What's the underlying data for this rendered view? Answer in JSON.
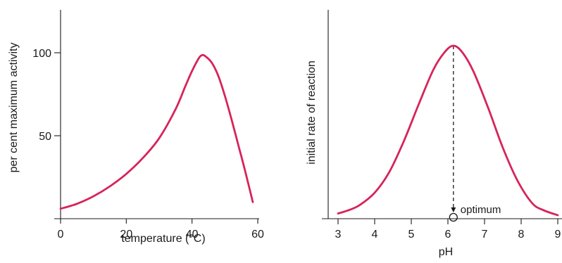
{
  "chart_data": [
    {
      "type": "line",
      "xlabel": "temperature (°C)",
      "ylabel": "per cent maximum activity",
      "xlim": [
        0,
        60
      ],
      "ylim": [
        0,
        125
      ],
      "x_ticks": [
        0,
        20,
        40,
        60
      ],
      "y_ticks": [
        50,
        100
      ],
      "grid": false,
      "series": [
        {
          "color": "#d6245a",
          "x": [
            0,
            5,
            10,
            15,
            20,
            25,
            30,
            35,
            38,
            40,
            42,
            43,
            44,
            46,
            48,
            50,
            52,
            54,
            56,
            58.5
          ],
          "y": [
            6,
            9,
            13.5,
            19.5,
            27,
            36.5,
            48.5,
            66,
            80,
            89,
            96.5,
            98.5,
            98,
            94,
            86,
            74,
            60,
            45,
            30,
            10
          ]
        }
      ]
    },
    {
      "type": "line",
      "xlabel": "pH",
      "ylabel": "initial rate of reaction",
      "xlim": [
        2.8,
        9
      ],
      "ylim": [
        0,
        1.2
      ],
      "x_ticks": [
        3,
        4,
        5,
        6,
        7,
        8,
        9
      ],
      "grid": false,
      "optimum": {
        "x": 6.15,
        "label": "optimum"
      },
      "series": [
        {
          "color": "#d6245a",
          "x": [
            3,
            3.3,
            3.6,
            4,
            4.4,
            4.8,
            5.2,
            5.6,
            5.9,
            6.15,
            6.4,
            6.7,
            7.1,
            7.5,
            7.9,
            8.3,
            8.6,
            9
          ],
          "y": [
            0.03,
            0.05,
            0.08,
            0.15,
            0.27,
            0.45,
            0.66,
            0.86,
            0.96,
            1.0,
            0.96,
            0.85,
            0.64,
            0.41,
            0.22,
            0.09,
            0.05,
            0.02
          ]
        }
      ]
    }
  ]
}
